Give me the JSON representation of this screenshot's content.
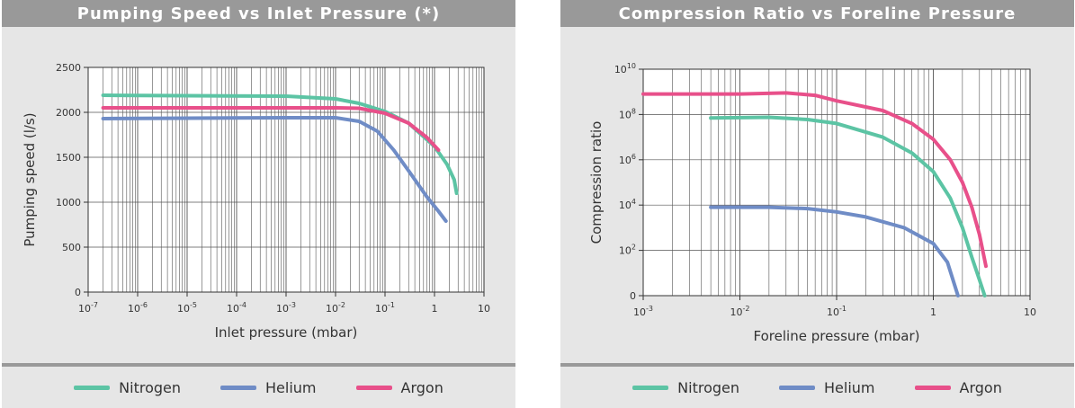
{
  "colors": {
    "nitrogen": "#5cc4a4",
    "helium": "#6f8cc6",
    "argon": "#e8508a"
  },
  "chart_data": [
    {
      "type": "line",
      "title": "Pumping Speed vs Inlet Pressure (*)",
      "xlabel": "Inlet pressure (mbar)",
      "ylabel": "Pumping speed (l/s)",
      "x_scale": "log",
      "xlim": [
        1e-07,
        10
      ],
      "ylim": [
        0,
        2500
      ],
      "grid": true,
      "legend_position": "bottom",
      "x_ticks": [
        {
          "value": 1e-07,
          "base": "10",
          "exp": "-7"
        },
        {
          "value": 1e-06,
          "base": "10",
          "exp": "-6"
        },
        {
          "value": 1e-05,
          "base": "10",
          "exp": "-5"
        },
        {
          "value": 0.0001,
          "base": "10",
          "exp": "-4"
        },
        {
          "value": 0.001,
          "base": "10",
          "exp": "-3"
        },
        {
          "value": 0.01,
          "base": "10",
          "exp": "-2"
        },
        {
          "value": 0.1,
          "base": "10",
          "exp": "-1"
        },
        {
          "value": 1,
          "base": "1",
          "exp": ""
        },
        {
          "value": 10,
          "base": "10",
          "exp": ""
        }
      ],
      "y_ticks": [
        {
          "value": 0,
          "label": "0"
        },
        {
          "value": 500,
          "label": "500"
        },
        {
          "value": 1000,
          "label": "1000"
        },
        {
          "value": 1500,
          "label": "1500"
        },
        {
          "value": 2000,
          "label": "2000"
        },
        {
          "value": 2500,
          "label": "2500"
        }
      ],
      "series": [
        {
          "name": "Nitrogen",
          "color_key": "nitrogen",
          "points": [
            [
              2e-07,
              2190
            ],
            [
              1e-05,
              2185
            ],
            [
              0.001,
              2180
            ],
            [
              0.01,
              2150
            ],
            [
              0.03,
              2100
            ],
            [
              0.1,
              2010
            ],
            [
              0.3,
              1880
            ],
            [
              1,
              1620
            ],
            [
              1.8,
              1420
            ],
            [
              2.5,
              1250
            ],
            [
              2.8,
              1100
            ]
          ]
        },
        {
          "name": "Helium",
          "color_key": "helium",
          "points": [
            [
              2e-07,
              1930
            ],
            [
              1e-05,
              1935
            ],
            [
              0.001,
              1940
            ],
            [
              0.01,
              1940
            ],
            [
              0.03,
              1900
            ],
            [
              0.07,
              1790
            ],
            [
              0.15,
              1580
            ],
            [
              0.3,
              1350
            ],
            [
              0.7,
              1060
            ],
            [
              1.2,
              900
            ],
            [
              1.7,
              790
            ]
          ]
        },
        {
          "name": "Argon",
          "color_key": "argon",
          "points": [
            [
              2e-07,
              2050
            ],
            [
              1e-05,
              2050
            ],
            [
              0.001,
              2050
            ],
            [
              0.01,
              2050
            ],
            [
              0.03,
              2045
            ],
            [
              0.1,
              1990
            ],
            [
              0.3,
              1880
            ],
            [
              0.7,
              1720
            ],
            [
              1.2,
              1580
            ]
          ]
        }
      ]
    },
    {
      "type": "line",
      "title": "Compression Ratio vs Foreline Pressure",
      "xlabel": "Foreline pressure (mbar)",
      "ylabel": "Compression ratio",
      "x_scale": "log",
      "y_scale": "log",
      "xlim": [
        0.001,
        10
      ],
      "ylim": [
        1,
        10000000000.0
      ],
      "grid": true,
      "legend_position": "bottom",
      "x_ticks": [
        {
          "value": 0.001,
          "base": "10",
          "exp": "-3"
        },
        {
          "value": 0.01,
          "base": "10",
          "exp": "-2"
        },
        {
          "value": 0.1,
          "base": "10",
          "exp": "-1"
        },
        {
          "value": 1,
          "base": "1",
          "exp": ""
        },
        {
          "value": 10,
          "base": "10",
          "exp": ""
        }
      ],
      "y_ticks": [
        {
          "value": 1,
          "base": "0",
          "exp": ""
        },
        {
          "value": 100,
          "base": "10",
          "exp": "2"
        },
        {
          "value": 10000,
          "base": "10",
          "exp": "4"
        },
        {
          "value": 1000000,
          "base": "10",
          "exp": "6"
        },
        {
          "value": 100000000,
          "base": "10",
          "exp": "8"
        },
        {
          "value": 10000000000,
          "base": "10",
          "exp": "10"
        }
      ],
      "series": [
        {
          "name": "Nitrogen",
          "color_key": "nitrogen",
          "points": [
            [
              0.005,
              70000000.0
            ],
            [
              0.02,
              75000000.0
            ],
            [
              0.05,
              60000000.0
            ],
            [
              0.1,
              40000000.0
            ],
            [
              0.3,
              10000000.0
            ],
            [
              0.6,
              2000000.0
            ],
            [
              1,
              300000.0
            ],
            [
              1.5,
              20000.0
            ],
            [
              2,
              1000.0
            ],
            [
              2.5,
              50
            ],
            [
              3,
              5
            ],
            [
              3.4,
              1
            ]
          ]
        },
        {
          "name": "Helium",
          "color_key": "helium",
          "points": [
            [
              0.005,
              8000
            ],
            [
              0.02,
              8000
            ],
            [
              0.05,
              7000
            ],
            [
              0.1,
              5000
            ],
            [
              0.2,
              3000
            ],
            [
              0.5,
              1000
            ],
            [
              1,
              200
            ],
            [
              1.4,
              30
            ],
            [
              1.8,
              1
            ]
          ]
        },
        {
          "name": "Argon",
          "color_key": "argon",
          "points": [
            [
              0.001,
              800000000.0
            ],
            [
              0.01,
              800000000.0
            ],
            [
              0.03,
              900000000.0
            ],
            [
              0.06,
              700000000.0
            ],
            [
              0.1,
              400000000.0
            ],
            [
              0.3,
              150000000.0
            ],
            [
              0.6,
              40000000.0
            ],
            [
              1,
              8000000.0
            ],
            [
              1.5,
              1000000.0
            ],
            [
              2,
              100000.0
            ],
            [
              2.5,
              8000.0
            ],
            [
              3,
              500
            ],
            [
              3.5,
              20
            ]
          ]
        }
      ]
    }
  ],
  "legends": [
    [
      {
        "name": "Nitrogen",
        "color_key": "nitrogen"
      },
      {
        "name": "Helium",
        "color_key": "helium"
      },
      {
        "name": "Argon",
        "color_key": "argon"
      }
    ],
    [
      {
        "name": "Nitrogen",
        "color_key": "nitrogen"
      },
      {
        "name": "Helium",
        "color_key": "helium"
      },
      {
        "name": "Argon",
        "color_key": "argon"
      }
    ]
  ]
}
